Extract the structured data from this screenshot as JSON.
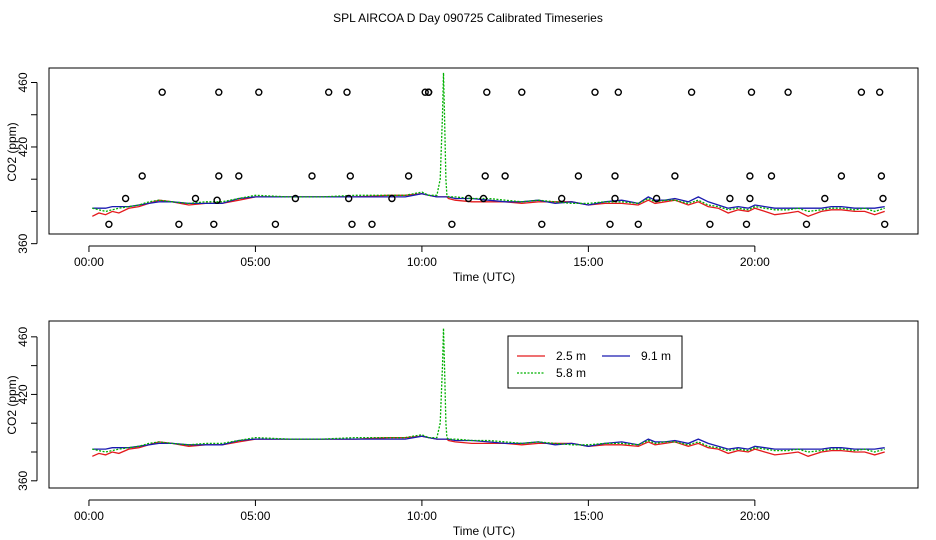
{
  "title": "SPL AIRCOA D  Day 090725  Calibrated Timeseries",
  "colors": {
    "s25": "#e41a1c",
    "s58": "#00b000",
    "s91": "#1a1ab0",
    "axis": "#000000"
  },
  "chart_data": [
    {
      "type": "line+scatter",
      "xlabel": "Time (UTC)",
      "ylabel": "CO2 (ppm)",
      "xlim": [
        -1.2,
        24.9
      ],
      "ylim": [
        366,
        469
      ],
      "xticks": [
        0,
        5,
        10,
        15,
        20
      ],
      "xtick_labels": [
        "00:00",
        "05:00",
        "10:00",
        "15:00",
        "20:00"
      ],
      "yticks": [
        360,
        380,
        400,
        420,
        440,
        460
      ],
      "ytick_labels": [
        "360",
        "",
        "",
        "420",
        "",
        "460"
      ],
      "series_levels": {
        "x": [
          0.1,
          0.3,
          0.5,
          0.7,
          0.9,
          1.2,
          1.5,
          1.8,
          2.1,
          2.5,
          3,
          3.5,
          4,
          4.5,
          5,
          6,
          7,
          8,
          9,
          9.5,
          10,
          10.2,
          10.45,
          10.55,
          10.62,
          10.65,
          10.68,
          10.72,
          10.75,
          10.8,
          11,
          11.5,
          12,
          12.5,
          13,
          13.5,
          14,
          14.5,
          15,
          15.5,
          16,
          16.5,
          16.8,
          17,
          17.3,
          17.6,
          18,
          18.3,
          18.6,
          18.9,
          19.2,
          19.5,
          19.8,
          20,
          20.3,
          20.6,
          21,
          21.3,
          21.6,
          22,
          22.3,
          22.6,
          23,
          23.3,
          23.6,
          23.9
        ],
        "names": [
          "2.5 m",
          "5.8 m",
          "9.1 m"
        ],
        "values_25m": [
          377,
          379,
          378,
          380,
          379,
          382,
          383,
          385,
          387,
          386,
          384,
          385,
          385,
          387,
          389,
          389,
          389,
          389,
          390,
          390,
          391,
          390,
          389,
          389,
          389,
          389,
          389,
          389,
          389,
          388,
          387,
          386,
          386,
          386,
          385,
          386,
          386,
          386,
          384,
          385,
          385,
          384,
          387,
          385,
          386,
          387,
          384,
          386,
          383,
          382,
          379,
          381,
          380,
          382,
          380,
          378,
          379,
          380,
          377,
          380,
          381,
          381,
          380,
          380,
          378,
          380
        ],
        "values_58m": [
          382,
          381,
          380,
          381,
          382,
          383,
          384,
          386,
          387,
          386,
          385,
          386,
          386,
          388,
          390,
          389,
          389,
          390,
          390,
          390,
          392,
          390,
          390,
          400,
          440,
          466,
          440,
          400,
          390,
          389,
          389,
          388,
          388,
          387,
          386,
          387,
          386,
          385,
          385,
          386,
          386,
          385,
          388,
          386,
          387,
          387,
          385,
          387,
          384,
          383,
          381,
          382,
          381,
          383,
          382,
          381,
          381,
          382,
          380,
          381,
          382,
          382,
          381,
          382,
          380,
          382
        ],
        "values_91m": [
          382,
          382,
          382,
          383,
          383,
          383,
          384,
          385,
          386,
          386,
          385,
          385,
          385,
          388,
          389,
          389,
          389,
          389,
          389,
          389,
          391,
          390,
          389,
          389,
          389,
          389,
          389,
          389,
          389,
          389,
          388,
          388,
          387,
          386,
          386,
          387,
          385,
          386,
          384,
          386,
          387,
          385,
          389,
          387,
          387,
          388,
          386,
          389,
          386,
          384,
          382,
          383,
          382,
          384,
          383,
          382,
          382,
          382,
          382,
          382,
          383,
          383,
          382,
          382,
          382,
          383
        ]
      },
      "markers": {
        "x": [
          0.6,
          1.1,
          1.6,
          2.2,
          2.7,
          3.2,
          3.75,
          3.85,
          3.9,
          3.9,
          4.5,
          5.1,
          5.6,
          6.2,
          6.7,
          7.2,
          7.75,
          7.8,
          7.85,
          7.9,
          8.5,
          9.1,
          9.6,
          10.1,
          10.2,
          10.2,
          10.9,
          11.4,
          11.85,
          11.9,
          11.95,
          12.5,
          13,
          13.6,
          14.2,
          14.7,
          15.2,
          15.65,
          15.8,
          15.8,
          15.9,
          16.5,
          17.05,
          17.6,
          18.1,
          18.65,
          19.25,
          19.75,
          19.85,
          19.85,
          19.9,
          20.5,
          21,
          21.55,
          22.1,
          22.6,
          23.2,
          23.75,
          23.8,
          23.85,
          23.9
        ],
        "y": [
          372,
          388,
          402,
          454,
          372,
          388,
          372,
          387,
          402,
          454,
          402,
          454,
          372,
          388,
          402,
          454,
          454,
          388,
          402,
          372,
          372,
          388,
          402,
          454,
          454,
          454,
          372,
          388,
          388,
          402,
          454,
          402,
          454,
          372,
          388,
          402,
          454,
          372,
          388,
          402,
          454,
          372,
          388,
          402,
          454,
          372,
          388,
          372,
          388,
          402,
          454,
          402,
          454,
          372,
          388,
          402,
          454,
          454,
          402,
          388,
          372
        ]
      }
    },
    {
      "type": "line",
      "xlabel": "Time (UTC)",
      "ylabel": "CO2 (ppm)",
      "xlim": [
        -1.2,
        24.9
      ],
      "ylim": [
        355,
        471
      ],
      "xticks": [
        0,
        5,
        10,
        15,
        20
      ],
      "xtick_labels": [
        "00:00",
        "05:00",
        "10:00",
        "15:00",
        "20:00"
      ],
      "yticks": [
        360,
        380,
        400,
        420,
        440,
        460
      ],
      "ytick_labels": [
        "360",
        "",
        "",
        "420",
        "",
        "460"
      ],
      "legend": {
        "placement": "top-center",
        "entries": [
          "2.5 m",
          "9.1 m",
          "5.8 m"
        ]
      }
    }
  ]
}
